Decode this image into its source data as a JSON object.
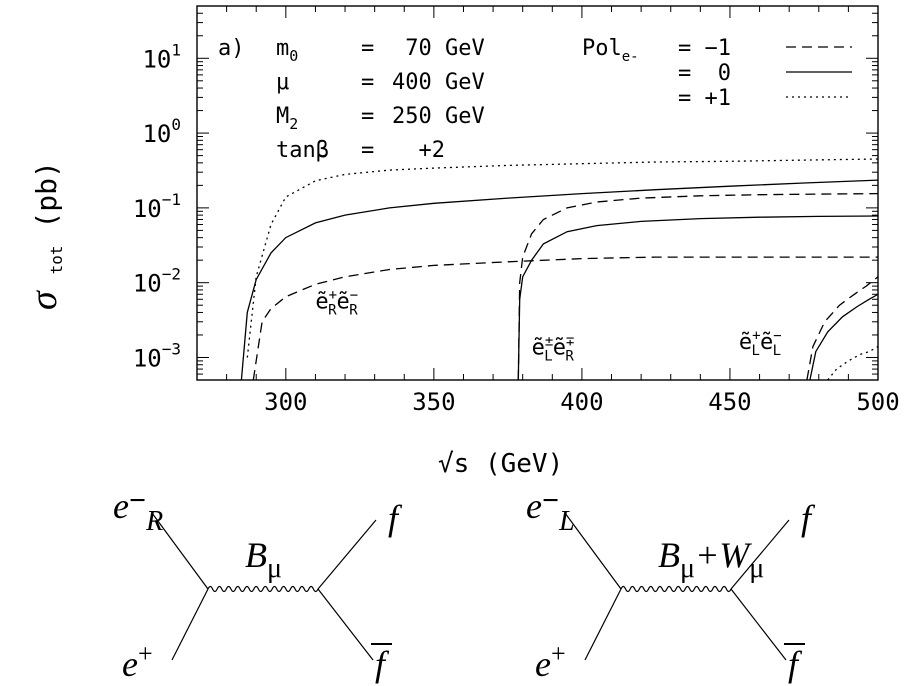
{
  "chart_data": {
    "type": "line",
    "panel_label": "a)",
    "xlabel": "√s  (GeV)",
    "ylabel": {
      "main": "σ",
      "sub": "tot",
      "unit": " (pb)"
    },
    "xlim": [
      270,
      500
    ],
    "ylim": [
      0.0005,
      50
    ],
    "yscale": "log",
    "xticks": [
      300,
      350,
      400,
      450,
      500
    ],
    "yticks": [
      {
        "value": 10,
        "base": "10",
        "exp": "1"
      },
      {
        "value": 1,
        "base": "10",
        "exp": "0"
      },
      {
        "value": 0.1,
        "base": "10",
        "exp": "−1"
      },
      {
        "value": 0.01,
        "base": "10",
        "exp": "−2"
      },
      {
        "value": 0.001,
        "base": "10",
        "exp": "−3"
      }
    ],
    "parameters": [
      {
        "name": "m",
        "sub": "0",
        "eq": "=",
        "value": " 70 GeV"
      },
      {
        "name": "μ",
        "sub": "",
        "eq": "=",
        "value": "400 GeV"
      },
      {
        "name": "M",
        "sub": "2",
        "eq": "=",
        "value": "250 GeV"
      },
      {
        "name": "tanβ",
        "sub": "",
        "eq": "=",
        "value": "  +2"
      }
    ],
    "legend": {
      "title": "Pol",
      "title_sub": "e-",
      "entries": [
        {
          "label": "= −1",
          "style": "dashed"
        },
        {
          "label": "=  0",
          "style": "solid"
        },
        {
          "label": "= +1",
          "style": "dotted"
        }
      ]
    },
    "process_labels": [
      {
        "prefix": "ẽ",
        "sup1": "+",
        "sub1": "R",
        "mid": "ẽ",
        "sup2": "−",
        "sub2": "R",
        "at_x": 310,
        "at_y": 0.0045
      },
      {
        "prefix": "ẽ",
        "sup1": "±",
        "sub1": "L",
        "mid": "ẽ",
        "sup2": "∓",
        "sub2": "R",
        "at_x": 383,
        "at_y": 0.0011
      },
      {
        "prefix": "ẽ",
        "sup1": "+",
        "sub1": "L",
        "mid": "ẽ",
        "sup2": "−",
        "sub2": "L",
        "at_x": 453,
        "at_y": 0.0013
      }
    ],
    "series": [
      {
        "process": "eR eR",
        "style": "dotted",
        "x": [
          287,
          290,
          295,
          300,
          310,
          320,
          335,
          350,
          375,
          400,
          425,
          450,
          475,
          500
        ],
        "y": [
          0.001,
          0.012,
          0.06,
          0.14,
          0.23,
          0.28,
          0.32,
          0.34,
          0.37,
          0.39,
          0.41,
          0.42,
          0.435,
          0.45
        ]
      },
      {
        "process": "eR eR",
        "style": "solid",
        "x": [
          285,
          287,
          290,
          295,
          300,
          310,
          320,
          335,
          350,
          375,
          400,
          425,
          450,
          475,
          500
        ],
        "y": [
          0.0005,
          0.004,
          0.011,
          0.025,
          0.04,
          0.063,
          0.08,
          0.1,
          0.115,
          0.135,
          0.155,
          0.175,
          0.195,
          0.215,
          0.235
        ]
      },
      {
        "process": "eR eR",
        "style": "dashed",
        "x": [
          289,
          292,
          295,
          300,
          310,
          320,
          335,
          350,
          375,
          400,
          425,
          450,
          475,
          500
        ],
        "y": [
          0.0005,
          0.003,
          0.0045,
          0.0065,
          0.0095,
          0.012,
          0.015,
          0.017,
          0.019,
          0.021,
          0.022,
          0.022,
          0.022,
          0.022
        ]
      },
      {
        "process": "eL eR",
        "style": "dashed",
        "x": [
          378.5,
          379,
          380,
          383,
          387,
          395,
          405,
          420,
          440,
          460,
          480,
          500
        ],
        "y": [
          0.0005,
          0.01,
          0.022,
          0.045,
          0.07,
          0.1,
          0.12,
          0.135,
          0.145,
          0.15,
          0.153,
          0.155
        ]
      },
      {
        "process": "eL eR",
        "style": "solid",
        "x": [
          378.5,
          379,
          380,
          383,
          387,
          395,
          405,
          420,
          440,
          460,
          480,
          500
        ],
        "y": [
          0.0005,
          0.006,
          0.012,
          0.02,
          0.033,
          0.048,
          0.058,
          0.066,
          0.072,
          0.075,
          0.077,
          0.078
        ]
      },
      {
        "process": "eL eL",
        "style": "dashed",
        "x": [
          476,
          478,
          482,
          487,
          492,
          496,
          500
        ],
        "y": [
          0.0005,
          0.0014,
          0.003,
          0.005,
          0.007,
          0.009,
          0.012
        ]
      },
      {
        "process": "eL eL",
        "style": "solid",
        "x": [
          477,
          479,
          483,
          488,
          493,
          497,
          500
        ],
        "y": [
          0.0005,
          0.0012,
          0.0022,
          0.0035,
          0.0048,
          0.006,
          0.007
        ]
      },
      {
        "process": "eL eL",
        "style": "dotted",
        "x": [
          483,
          486,
          490,
          494,
          497,
          500
        ],
        "y": [
          0.0005,
          0.0007,
          0.0009,
          0.0011,
          0.0012,
          0.0014
        ]
      }
    ]
  },
  "diagrams": [
    {
      "top_in": "e",
      "top_in_sup": "−",
      "top_in_sub": "R",
      "bottom_in": "e",
      "bottom_in_sup": "+",
      "boson": "B",
      "boson_sub": "μ",
      "boson_extra": "",
      "boson_extra_sub": "",
      "top_out": "f",
      "bottom_out": "f"
    },
    {
      "top_in": "e",
      "top_in_sup": "−",
      "top_in_sub": "L",
      "bottom_in": "e",
      "bottom_in_sup": "+",
      "boson": "B",
      "boson_sub": "μ",
      "boson_extra": "+W",
      "boson_extra_sub": "μ",
      "top_out": "f",
      "bottom_out": "f"
    }
  ]
}
